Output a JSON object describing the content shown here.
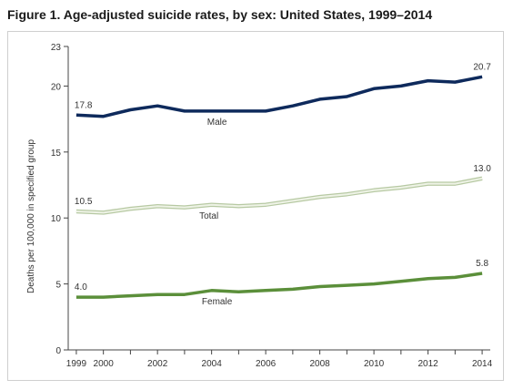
{
  "figure": {
    "title": "Figure 1. Age-adjusted suicide rates, by sex: United States, 1999–2014"
  },
  "chart_data": {
    "type": "line",
    "title": "Figure 1. Age-adjusted suicide rates, by sex: United States, 1999–2014",
    "xlabel": "",
    "ylabel": "Deaths per 100,000 in specified group",
    "x": [
      1999,
      2000,
      2001,
      2002,
      2003,
      2004,
      2005,
      2006,
      2007,
      2008,
      2009,
      2010,
      2011,
      2012,
      2013,
      2014
    ],
    "xticks": [
      "1999",
      "2000",
      "2002",
      "2004",
      "2006",
      "2008",
      "2010",
      "2012",
      "2014"
    ],
    "xtick_values": [
      1999,
      2000,
      2002,
      2004,
      2006,
      2008,
      2010,
      2012,
      2014
    ],
    "ylim": [
      0,
      23
    ],
    "yticks": [
      "0",
      "5",
      "10",
      "15",
      "20",
      "23"
    ],
    "ytick_values": [
      0,
      5,
      10,
      15,
      20,
      23
    ],
    "grid": false,
    "legend": "none (series labeled directly on lines)",
    "series": [
      {
        "name": "Male",
        "color": "#0e2a5c",
        "values": [
          17.8,
          17.7,
          18.2,
          18.5,
          18.1,
          18.1,
          18.1,
          18.1,
          18.5,
          19.0,
          19.2,
          19.8,
          20.0,
          20.4,
          20.3,
          20.7
        ],
        "start_label": "17.8",
        "end_label": "20.7"
      },
      {
        "name": "Total",
        "color": "#cfdcbf",
        "values": [
          10.5,
          10.4,
          10.7,
          10.9,
          10.8,
          11.0,
          10.9,
          11.0,
          11.3,
          11.6,
          11.8,
          12.1,
          12.3,
          12.6,
          12.6,
          13.0
        ],
        "start_label": "10.5",
        "end_label": "13.0"
      },
      {
        "name": "Female",
        "color": "#5b8f3a",
        "values": [
          4.0,
          4.0,
          4.1,
          4.2,
          4.2,
          4.5,
          4.4,
          4.5,
          4.6,
          4.8,
          4.9,
          5.0,
          5.2,
          5.4,
          5.5,
          5.8
        ],
        "start_label": "4.0",
        "end_label": "5.8"
      }
    ]
  }
}
